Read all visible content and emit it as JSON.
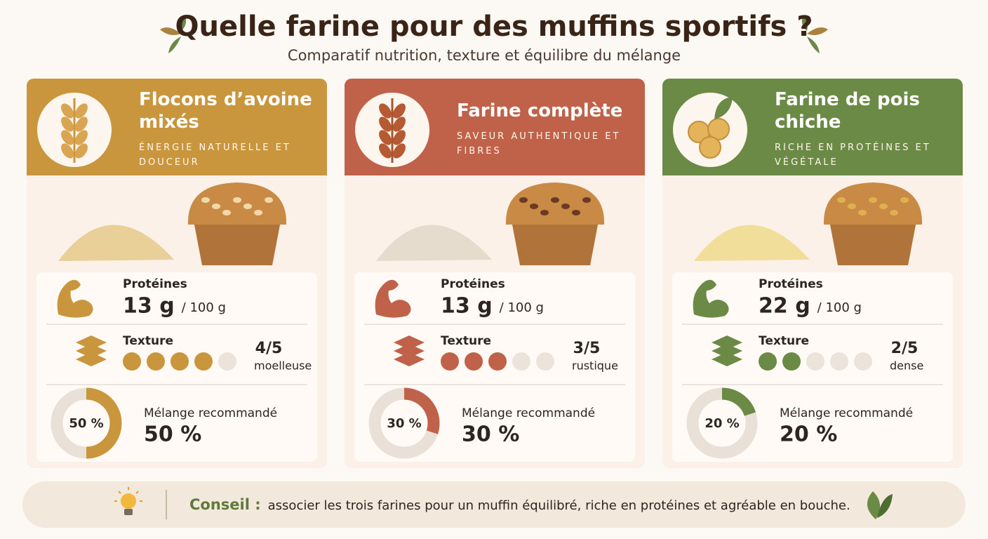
{
  "header": {
    "title": "Quelle farine pour des muffins sportifs ?",
    "subtitle": "Comparatif nutrition, texture et équilibre du mélange"
  },
  "cards": [
    {
      "name": "Flocons d’avoine mixés",
      "tagline": "ÉNERGIE NATURELLE ET DOUCEUR",
      "color": "#c9963e",
      "protein_label": "Protéines",
      "protein": {
        "value": 13,
        "label": "13 g"
      },
      "protein_per": "/ 100 g",
      "texture_label": "Texture",
      "texture": {
        "value": 4,
        "max": 5,
        "label": "4/5"
      },
      "texture_desc": "moelleuse",
      "blend_label": "Mélange recommandé",
      "blend": {
        "value": 50,
        "label": "50 %"
      }
    },
    {
      "name": "Farine complète",
      "tagline": "SAVEUR AUTHENTIQUE ET FIBRES",
      "color": "#c0624a",
      "protein_label": "Protéines",
      "protein": {
        "value": 13,
        "label": "13 g"
      },
      "protein_per": "/ 100 g",
      "texture_label": "Texture",
      "texture": {
        "value": 3,
        "max": 5,
        "label": "3/5"
      },
      "texture_desc": "rustique",
      "blend_label": "Mélange recommandé",
      "blend": {
        "value": 30,
        "label": "30 %"
      }
    },
    {
      "name": "Farine de pois chiche",
      "tagline": "RICHE EN PROTÉINES ET VÉGÉTALE",
      "color": "#6b8a45",
      "protein_label": "Protéines",
      "protein": {
        "value": 22,
        "label": "22 g"
      },
      "protein_per": "/ 100 g",
      "texture_label": "Texture",
      "texture": {
        "value": 2,
        "max": 5,
        "label": "2/5"
      },
      "texture_desc": "dense",
      "blend_label": "Mélange recommandé",
      "blend": {
        "value": 20,
        "label": "20 %"
      }
    }
  ],
  "tip": {
    "label": "Conseil :",
    "text": "associer les trois farines pour un muffin équilibré, riche en protéines et agréable en bouche."
  }
}
